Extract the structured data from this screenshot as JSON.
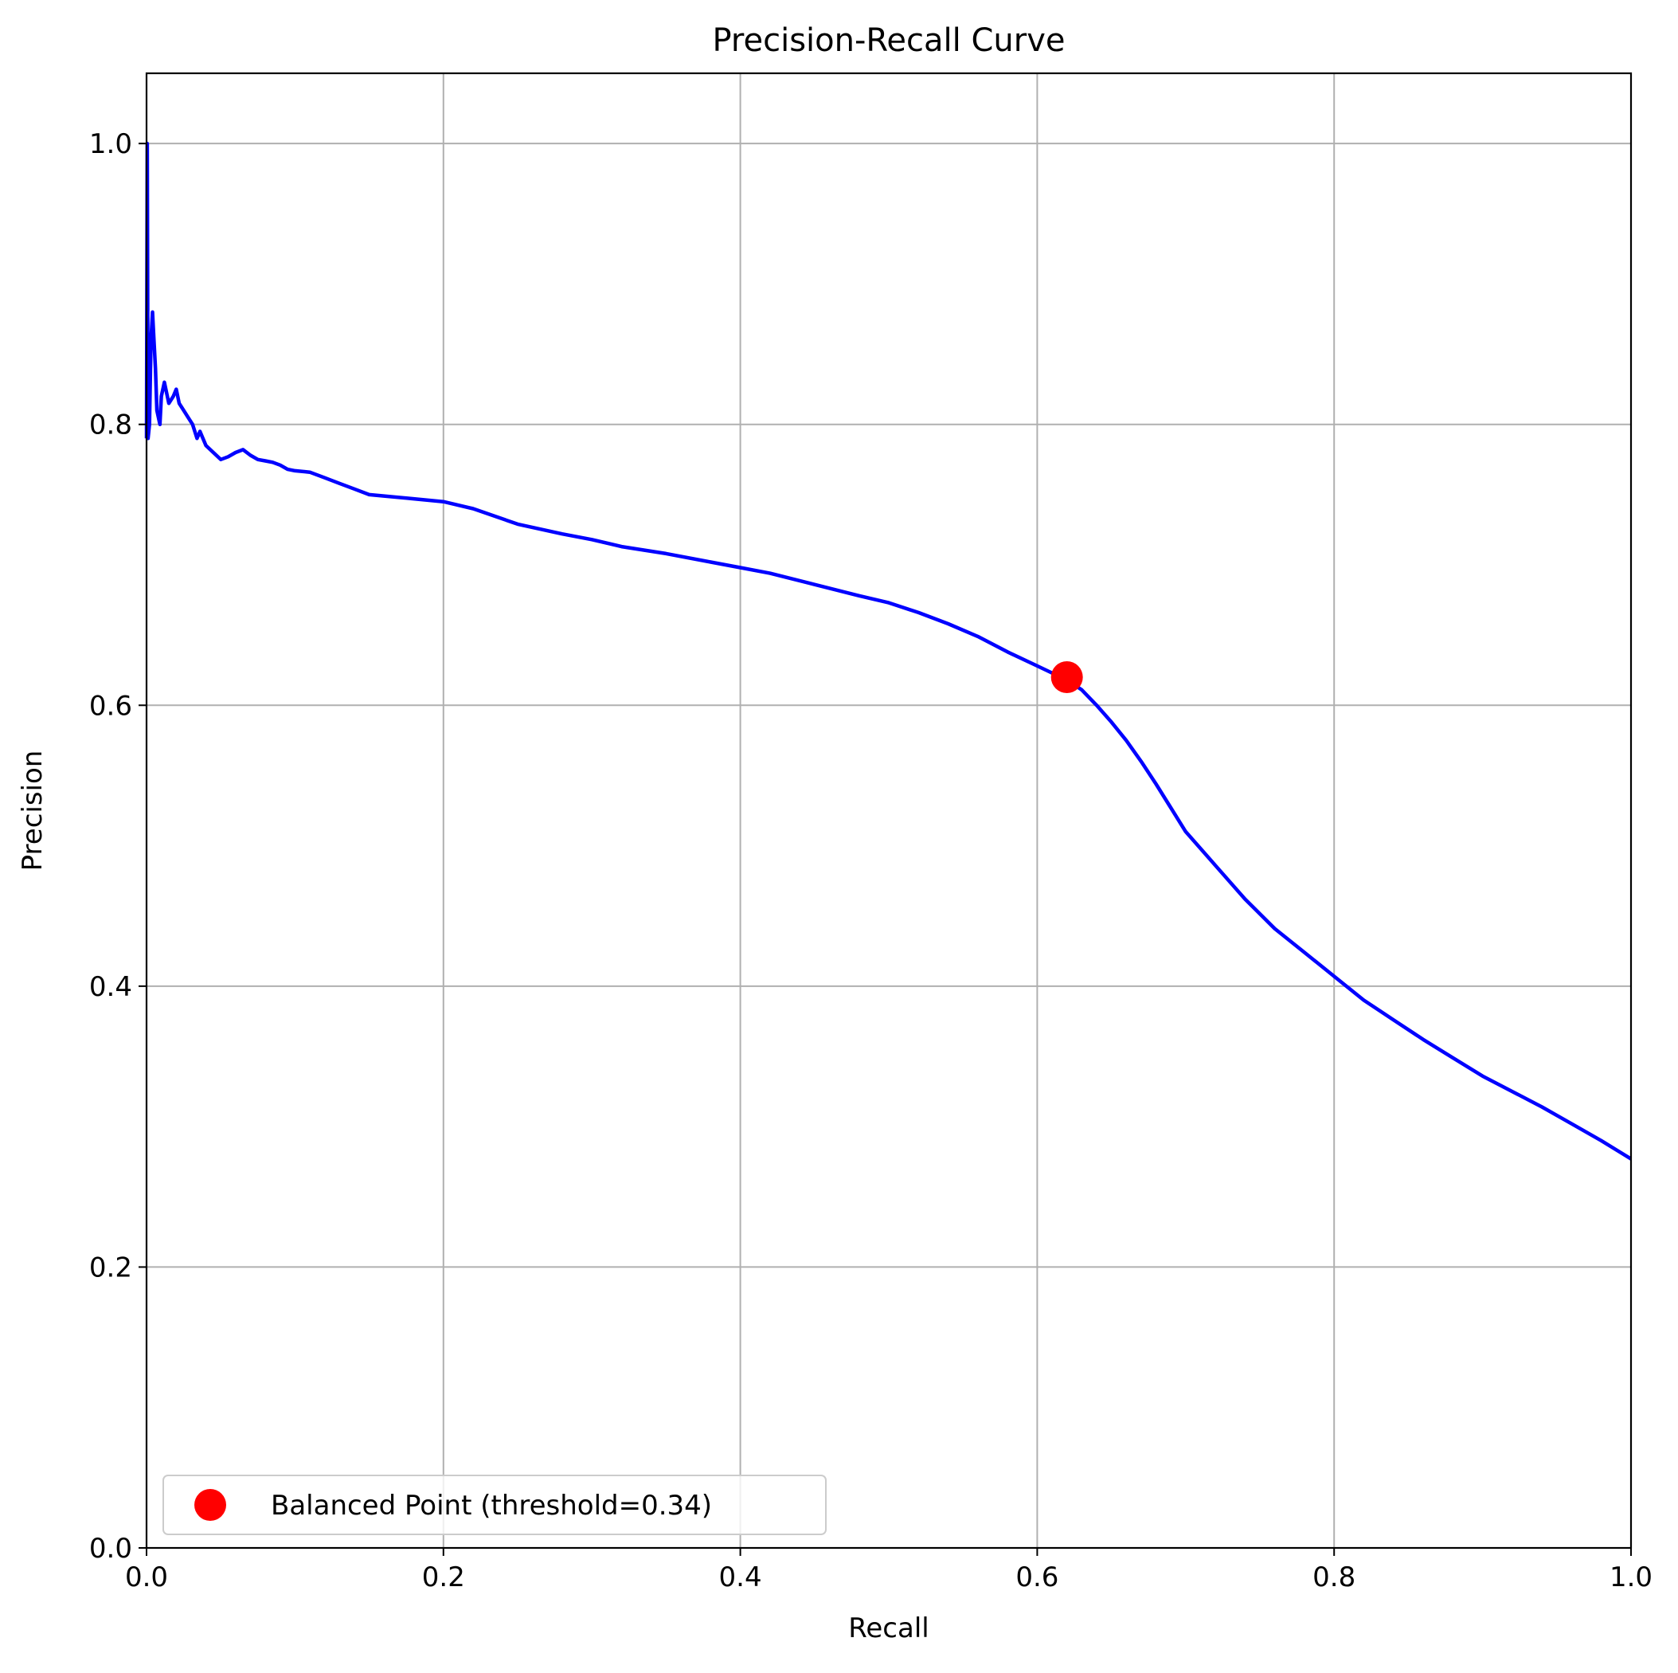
{
  "chart_data": {
    "type": "line",
    "title": "Precision-Recall Curve",
    "xlabel": "Recall",
    "ylabel": "Precision",
    "xlim": [
      0.0,
      1.0
    ],
    "ylim": [
      0.0,
      1.05
    ],
    "x_ticks": [
      0.0,
      0.2,
      0.4,
      0.6,
      0.8,
      1.0
    ],
    "x_tick_labels": [
      "0.0",
      "0.2",
      "0.4",
      "0.6",
      "0.8",
      "1.0"
    ],
    "y_ticks": [
      0.0,
      0.2,
      0.4,
      0.6,
      0.8,
      1.0
    ],
    "y_tick_labels": [
      "0.0",
      "0.2",
      "0.4",
      "0.6",
      "0.8",
      "1.0"
    ],
    "grid": true,
    "legend_position": "lower-left",
    "series": [
      {
        "color": "#0000ff",
        "x": [
          0.0,
          0.0005,
          0.001,
          0.002,
          0.003,
          0.004,
          0.005,
          0.006,
          0.007,
          0.009,
          0.01,
          0.012,
          0.015,
          0.018,
          0.02,
          0.022,
          0.025,
          0.028,
          0.031,
          0.034,
          0.036,
          0.038,
          0.04,
          0.045,
          0.05,
          0.055,
          0.06,
          0.065,
          0.07,
          0.075,
          0.08,
          0.085,
          0.09,
          0.095,
          0.1,
          0.11,
          0.12,
          0.13,
          0.14,
          0.15,
          0.16,
          0.18,
          0.2,
          0.22,
          0.25,
          0.28,
          0.3,
          0.32,
          0.35,
          0.38,
          0.4,
          0.42,
          0.45,
          0.48,
          0.5,
          0.52,
          0.54,
          0.56,
          0.58,
          0.6,
          0.62,
          0.63,
          0.64,
          0.65,
          0.66,
          0.67,
          0.68,
          0.69,
          0.7,
          0.72,
          0.74,
          0.76,
          0.78,
          0.8,
          0.82,
          0.84,
          0.86,
          0.88,
          0.9,
          0.92,
          0.94,
          0.96,
          0.98,
          1.0
        ],
        "y": [
          0.79,
          1.0,
          0.79,
          0.8,
          0.86,
          0.88,
          0.86,
          0.84,
          0.81,
          0.8,
          0.82,
          0.83,
          0.815,
          0.82,
          0.825,
          0.815,
          0.81,
          0.805,
          0.8,
          0.79,
          0.795,
          0.79,
          0.785,
          0.78,
          0.775,
          0.777,
          0.78,
          0.782,
          0.778,
          0.775,
          0.774,
          0.773,
          0.771,
          0.768,
          0.767,
          0.766,
          0.762,
          0.758,
          0.754,
          0.75,
          0.749,
          0.747,
          0.745,
          0.74,
          0.729,
          0.722,
          0.718,
          0.713,
          0.708,
          0.702,
          0.698,
          0.694,
          0.686,
          0.678,
          0.673,
          0.666,
          0.658,
          0.649,
          0.638,
          0.628,
          0.618,
          0.611,
          0.6,
          0.588,
          0.575,
          0.56,
          0.544,
          0.527,
          0.51,
          0.486,
          0.462,
          0.441,
          0.424,
          0.407,
          0.39,
          0.376,
          0.362,
          0.349,
          0.336,
          0.325,
          0.314,
          0.302,
          0.29,
          0.277
        ]
      }
    ],
    "highlight_point": {
      "label": "Balanced Point (threshold=0.34)",
      "x": 0.62,
      "y": 0.62,
      "color": "#ff0000"
    }
  }
}
